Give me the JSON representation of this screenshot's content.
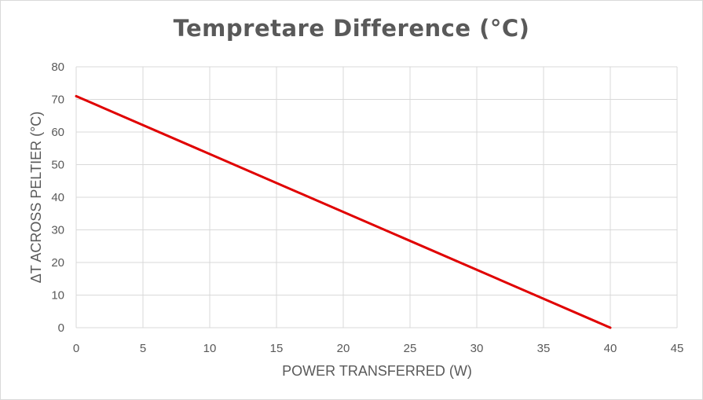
{
  "chart_data": {
    "type": "line",
    "title": "Tempretare Difference (°C)",
    "xlabel": "POWER TRANSFERRED (W)",
    "ylabel": "ΔT ACROSS PELTIER (°C)",
    "xlim": [
      0,
      45
    ],
    "ylim": [
      0,
      80
    ],
    "x_ticks": [
      0,
      5,
      10,
      15,
      20,
      25,
      30,
      35,
      40,
      45
    ],
    "y_ticks": [
      0,
      10,
      20,
      30,
      40,
      50,
      60,
      70,
      80
    ],
    "grid": true,
    "legend": "none",
    "series": [
      {
        "color": "#e00000",
        "x": [
          0,
          40
        ],
        "y": [
          71,
          0
        ]
      }
    ],
    "colors": {
      "line": "#e00000",
      "grid": "#d9d9d9",
      "text": "#595959"
    }
  }
}
